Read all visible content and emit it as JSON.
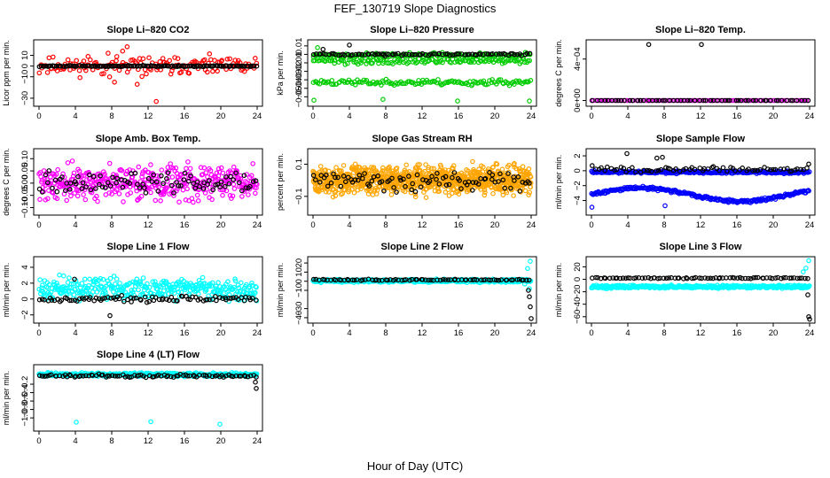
{
  "figure": {
    "title": "FEF_130719  Slope Diagnostics",
    "xlabel": "Hour of Day (UTC)"
  },
  "chart_data": [
    {
      "type": "scatter",
      "title": "Slope Li–820 CO2",
      "ylabel": "Licor ppm per min.",
      "xlim": [
        0,
        24
      ],
      "ylim": [
        -35,
        22
      ],
      "xticks": [
        "0",
        "4",
        "8",
        "12",
        "16",
        "20",
        "24"
      ],
      "yticks": [
        -30,
        -10,
        0,
        10
      ],
      "series": [
        {
          "color": "#ff0000",
          "seed": 11,
          "mode": "noisy",
          "center": 0,
          "spread": 12,
          "n": 160,
          "points": [
            [
              12.9,
              -33
            ],
            [
              9.7,
              18
            ],
            [
              9.2,
              14
            ],
            [
              7.6,
              12
            ],
            [
              5.4,
              9
            ],
            [
              10.8,
              -17
            ],
            [
              8.3,
              -15
            ]
          ]
        },
        {
          "color": "#000000",
          "seed": 12,
          "mode": "flat",
          "center": 0,
          "spread": 0.8,
          "n": 140
        }
      ]
    },
    {
      "type": "scatter",
      "title": "Slope Li–820 Pressure",
      "ylabel": "kPa per min.",
      "xlim": [
        0,
        24
      ],
      "ylim": [
        -0.058,
        0.014
      ],
      "xticks": [
        "0",
        "4",
        "8",
        "12",
        "16",
        "20",
        "24"
      ],
      "yticks": [
        -0.05,
        -0.04,
        -0.03,
        -0.02,
        -0.01,
        0.0,
        0.01
      ],
      "series": [
        {
          "color": "#00cc00",
          "seed": 21,
          "mode": "band",
          "center": -0.001,
          "spread": 0.004,
          "n": 150
        },
        {
          "color": "#00cc00",
          "seed": 22,
          "mode": "band",
          "center": -0.008,
          "spread": 0.005,
          "n": 130
        },
        {
          "color": "#00cc00",
          "seed": 23,
          "mode": "band",
          "center": -0.033,
          "spread": 0.005,
          "n": 140,
          "points": [
            [
              0.1,
              -0.054
            ],
            [
              7.7,
              -0.053
            ],
            [
              15.9,
              -0.055
            ],
            [
              23.8,
              -0.055
            ],
            [
              0.5,
              0.008
            ]
          ]
        },
        {
          "color": "#000000",
          "seed": 24,
          "mode": "flat",
          "center": 0.0,
          "spread": 0.002,
          "n": 90,
          "points": [
            [
              4.0,
              0.011
            ],
            [
              1.1,
              0.006
            ],
            [
              7.9,
              -0.002
            ]
          ]
        }
      ]
    },
    {
      "type": "scatter",
      "title": "Slope Li–820 Temp.",
      "ylabel": "degrees C per min.",
      "xlim": [
        0,
        24
      ],
      "ylim": [
        -3e-05,
        0.00056
      ],
      "xticks": [
        "0",
        "4",
        "8",
        "12",
        "16",
        "20",
        "24"
      ],
      "yticks": [
        0,
        0.0004
      ],
      "yticklabels": [
        "0e+00",
        "4e−04"
      ],
      "series": [
        {
          "color": "#dd00dd",
          "seed": 31,
          "mode": "flat",
          "center": 0,
          "spread": 0,
          "n": 110
        },
        {
          "color": "#000000",
          "seed": 32,
          "mode": "flat",
          "center": 0,
          "spread": 0,
          "n": 60,
          "points": [
            [
              6.3,
              0.00054
            ],
            [
              12.1,
              0.00054
            ]
          ]
        }
      ]
    },
    {
      "type": "scatter",
      "title": "Slope Amb. Box Temp.",
      "ylabel": "degrees C per min.",
      "xlim": [
        0,
        24
      ],
      "ylim": [
        -0.12,
        0.13
      ],
      "xticks": [
        "0",
        "4",
        "8",
        "12",
        "16",
        "20",
        "24"
      ],
      "yticks": [
        -0.1,
        -0.05,
        0.0,
        0.05,
        0.1
      ],
      "yticklabels": [
        "−0.10",
        "−0.05",
        "0.00",
        "0.05",
        "0.10"
      ],
      "series": [
        {
          "color": "#ff00ff",
          "seed": 41,
          "mode": "noisy",
          "center": 0.0,
          "spread": 0.1,
          "n": 420
        },
        {
          "color": "#000000",
          "seed": 42,
          "mode": "noisy",
          "center": 0.0,
          "spread": 0.06,
          "n": 90
        }
      ]
    },
    {
      "type": "scatter",
      "title": "Slope Gas Stream RH",
      "ylabel": "percent per min.",
      "xlim": [
        0,
        24
      ],
      "ylim": [
        -0.2,
        0.18
      ],
      "xticks": [
        "0",
        "4",
        "8",
        "12",
        "16",
        "20",
        "24"
      ],
      "yticks": [
        -0.1,
        0.1
      ],
      "series": [
        {
          "color": "#ffa500",
          "seed": 51,
          "mode": "noisy",
          "center": 0.0,
          "spread": 0.12,
          "n": 900
        },
        {
          "color": "#000000",
          "seed": 52,
          "mode": "noisy",
          "center": 0.0,
          "spread": 0.09,
          "n": 90
        }
      ]
    },
    {
      "type": "scatter",
      "title": "Slope Sample Flow",
      "ylabel": "ml/min per min.",
      "xlim": [
        0,
        24
      ],
      "ylim": [
        -5.6,
        2.6
      ],
      "xticks": [
        "0",
        "4",
        "8",
        "12",
        "16",
        "20",
        "24"
      ],
      "yticks": [
        -4,
        -2,
        0,
        2
      ],
      "series": [
        {
          "color": "#0000ff",
          "seed": 61,
          "mode": "band",
          "center": -0.2,
          "spread": 0.25,
          "n": 260
        },
        {
          "color": "#0000ff",
          "seed": 62,
          "mode": "wave",
          "center": -3.2,
          "spread": 0.3,
          "n": 260,
          "points": [
            [
              0.05,
              -4.9
            ],
            [
              8.1,
              -4.7
            ]
          ]
        },
        {
          "color": "#000000",
          "seed": 63,
          "mode": "flat",
          "center": 0.2,
          "spread": 0.5,
          "n": 70,
          "points": [
            [
              3.9,
              2.3
            ],
            [
              7.2,
              1.7
            ],
            [
              7.8,
              1.8
            ],
            [
              23.9,
              0.9
            ]
          ]
        }
      ]
    },
    {
      "type": "scatter",
      "title": "Slope Line 1 Flow",
      "ylabel": "ml/min per min.",
      "xlim": [
        0,
        24
      ],
      "ylim": [
        -2.7,
        5.0
      ],
      "xticks": [
        "0",
        "4",
        "8",
        "12",
        "16",
        "20",
        "24"
      ],
      "yticks": [
        -2,
        0,
        2,
        4
      ],
      "series": [
        {
          "color": "#00ffff",
          "seed": 71,
          "mode": "noisy",
          "center": 1.3,
          "spread": 2.0,
          "n": 360
        },
        {
          "color": "#000000",
          "seed": 72,
          "mode": "flat",
          "center": 0.0,
          "spread": 0.6,
          "n": 90,
          "points": [
            [
              3.9,
              2.5
            ],
            [
              7.8,
              -2.1
            ]
          ]
        }
      ]
    },
    {
      "type": "scatter",
      "title": "Slope Line 2 Flow",
      "ylabel": "ml/min per min.",
      "xlim": [
        0,
        24
      ],
      "ylim": [
        -43,
        24
      ],
      "xticks": [
        "0",
        "4",
        "8",
        "12",
        "16",
        "20",
        "24"
      ],
      "yticks": [
        -40,
        -30,
        -10,
        0,
        10,
        20
      ],
      "series": [
        {
          "color": "#00ffff",
          "seed": 81,
          "mode": "band",
          "center": 0.5,
          "spread": 2.5,
          "n": 420,
          "points": [
            [
              23.9,
              22
            ],
            [
              23.6,
              14
            ],
            [
              23.8,
              -8
            ],
            [
              23.3,
              -3
            ]
          ]
        },
        {
          "color": "#000000",
          "seed": 82,
          "mode": "flat",
          "center": 1.5,
          "spread": 1.0,
          "n": 80,
          "points": [
            [
              23.7,
              -10
            ],
            [
              23.8,
              -17
            ],
            [
              23.9,
              -28
            ],
            [
              24.0,
              -41
            ]
          ]
        }
      ]
    },
    {
      "type": "scatter",
      "title": "Slope Line 3 Flow",
      "ylabel": "ml/min per min.",
      "xlim": [
        0,
        24
      ],
      "ylim": [
        -66,
        32
      ],
      "xticks": [
        "0",
        "4",
        "8",
        "12",
        "16",
        "20",
        "24"
      ],
      "yticks": [
        -60,
        -40,
        -20,
        0,
        20
      ],
      "series": [
        {
          "color": "#00ffff",
          "seed": 91,
          "mode": "band",
          "center": -12,
          "spread": 3.5,
          "n": 420,
          "points": [
            [
              23.9,
              30
            ],
            [
              23.6,
              18
            ],
            [
              23.3,
              12
            ]
          ]
        },
        {
          "color": "#000000",
          "seed": 92,
          "mode": "flat",
          "center": 2,
          "spread": 1.5,
          "n": 80,
          "points": [
            [
              23.8,
              -25
            ],
            [
              23.9,
              -60
            ],
            [
              24.0,
              -64
            ]
          ]
        }
      ]
    },
    {
      "type": "scatter",
      "title": "Slope Line 4 (LT) Flow",
      "ylabel": "ml/min per min.",
      "xlim": [
        0,
        24
      ],
      "ylim": [
        -1.25,
        0.2
      ],
      "xticks": [
        "0",
        "4",
        "8",
        "12",
        "16",
        "20",
        "24"
      ],
      "yticks": [
        -1.0,
        -0.8,
        -0.6,
        -0.4,
        -0.2
      ],
      "yticklabels": [
        "−1.0",
        "−0.8",
        "−0.6",
        "−0.4",
        "−0.2"
      ],
      "series": [
        {
          "color": "#00ffff",
          "seed": 101,
          "mode": "band",
          "center": 0.03,
          "spread": 0.06,
          "n": 420,
          "points": [
            [
              4.1,
              -1.1
            ],
            [
              12.3,
              -1.09
            ],
            [
              19.9,
              -1.15
            ]
          ]
        },
        {
          "color": "#000000",
          "seed": 102,
          "mode": "flat",
          "center": 0.0,
          "spread": 0.05,
          "n": 90,
          "points": [
            [
              23.9,
              -0.3
            ],
            [
              23.8,
              -0.15
            ]
          ]
        }
      ]
    }
  ]
}
